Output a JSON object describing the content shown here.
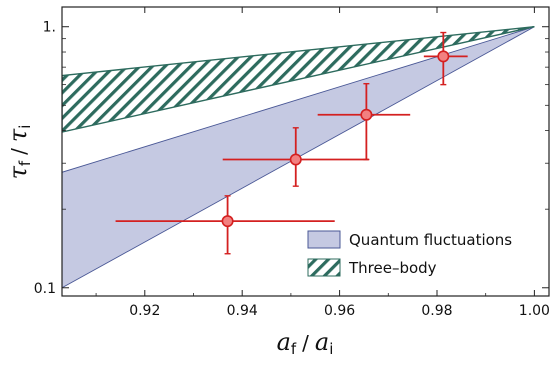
{
  "chart_data": {
    "type": "scatter",
    "xlabel": {
      "main": "a",
      "sub": "f",
      "sep": "/",
      "main2": "a",
      "sub2": "i"
    },
    "ylabel": {
      "main": "τ",
      "sub": "f",
      "sep": "/",
      "main2": "τ",
      "sub2": "i"
    },
    "xlim": [
      0.903,
      1.003
    ],
    "ylim": [
      0.093,
      1.19
    ],
    "yscale": "log",
    "grid": false,
    "legend_position": "bottom-right",
    "x_ticks": [
      {
        "value": 0.92,
        "label": "0.92"
      },
      {
        "value": 0.94,
        "label": "0.94"
      },
      {
        "value": 0.96,
        "label": "0.96"
      },
      {
        "value": 0.98,
        "label": "0.98"
      },
      {
        "value": 1.0,
        "label": "1.00"
      }
    ],
    "y_ticks": [
      {
        "value": 0.1,
        "label": "0.1"
      },
      {
        "value": 1.0,
        "label": "1."
      }
    ],
    "y_minor_ticks": [
      0.2,
      0.3,
      0.4,
      0.5,
      0.6,
      0.7,
      0.8,
      0.9
    ],
    "bands": [
      {
        "name": "Quantum fluctuations",
        "color": "#c5c9e2",
        "edge_color": "#4a5896",
        "pattern": "solid",
        "x": [
          0.903,
          1.0
        ],
        "upper": [
          0.277,
          1.0
        ],
        "lower": [
          0.1,
          1.0
        ]
      },
      {
        "name": "Three-body",
        "color": "#2d6b5e",
        "edge_color": "#2d6b5e",
        "pattern": "hatch",
        "x": [
          0.903,
          1.0
        ],
        "upper": [
          0.65,
          1.0
        ],
        "lower": [
          0.395,
          1.0
        ]
      }
    ],
    "series": [
      {
        "marker_color": "#f28080",
        "error_color": "#d42020",
        "points": [
          {
            "x": 0.937,
            "y": 0.18,
            "xerr": [
              0.023,
              0.022
            ],
            "yerr": [
              0.045,
              0.045
            ]
          },
          {
            "x": 0.951,
            "y": 0.31,
            "xerr": [
              0.015,
              0.015
            ],
            "yerr": [
              0.065,
              0.1
            ]
          },
          {
            "x": 0.9655,
            "y": 0.46,
            "xerr": [
              0.01,
              0.009
            ],
            "yerr": [
              0.15,
              0.145
            ]
          },
          {
            "x": 0.9813,
            "y": 0.77,
            "xerr": [
              0.004,
              0.005
            ],
            "yerr": [
              0.17,
              0.18
            ]
          }
        ]
      }
    ],
    "legend": [
      {
        "label": "Quantum fluctuations",
        "swatch": "solid",
        "color": "#c5c9e2"
      },
      {
        "label": "Three–body",
        "swatch": "hatch",
        "color": "#2d6b5e"
      }
    ]
  }
}
